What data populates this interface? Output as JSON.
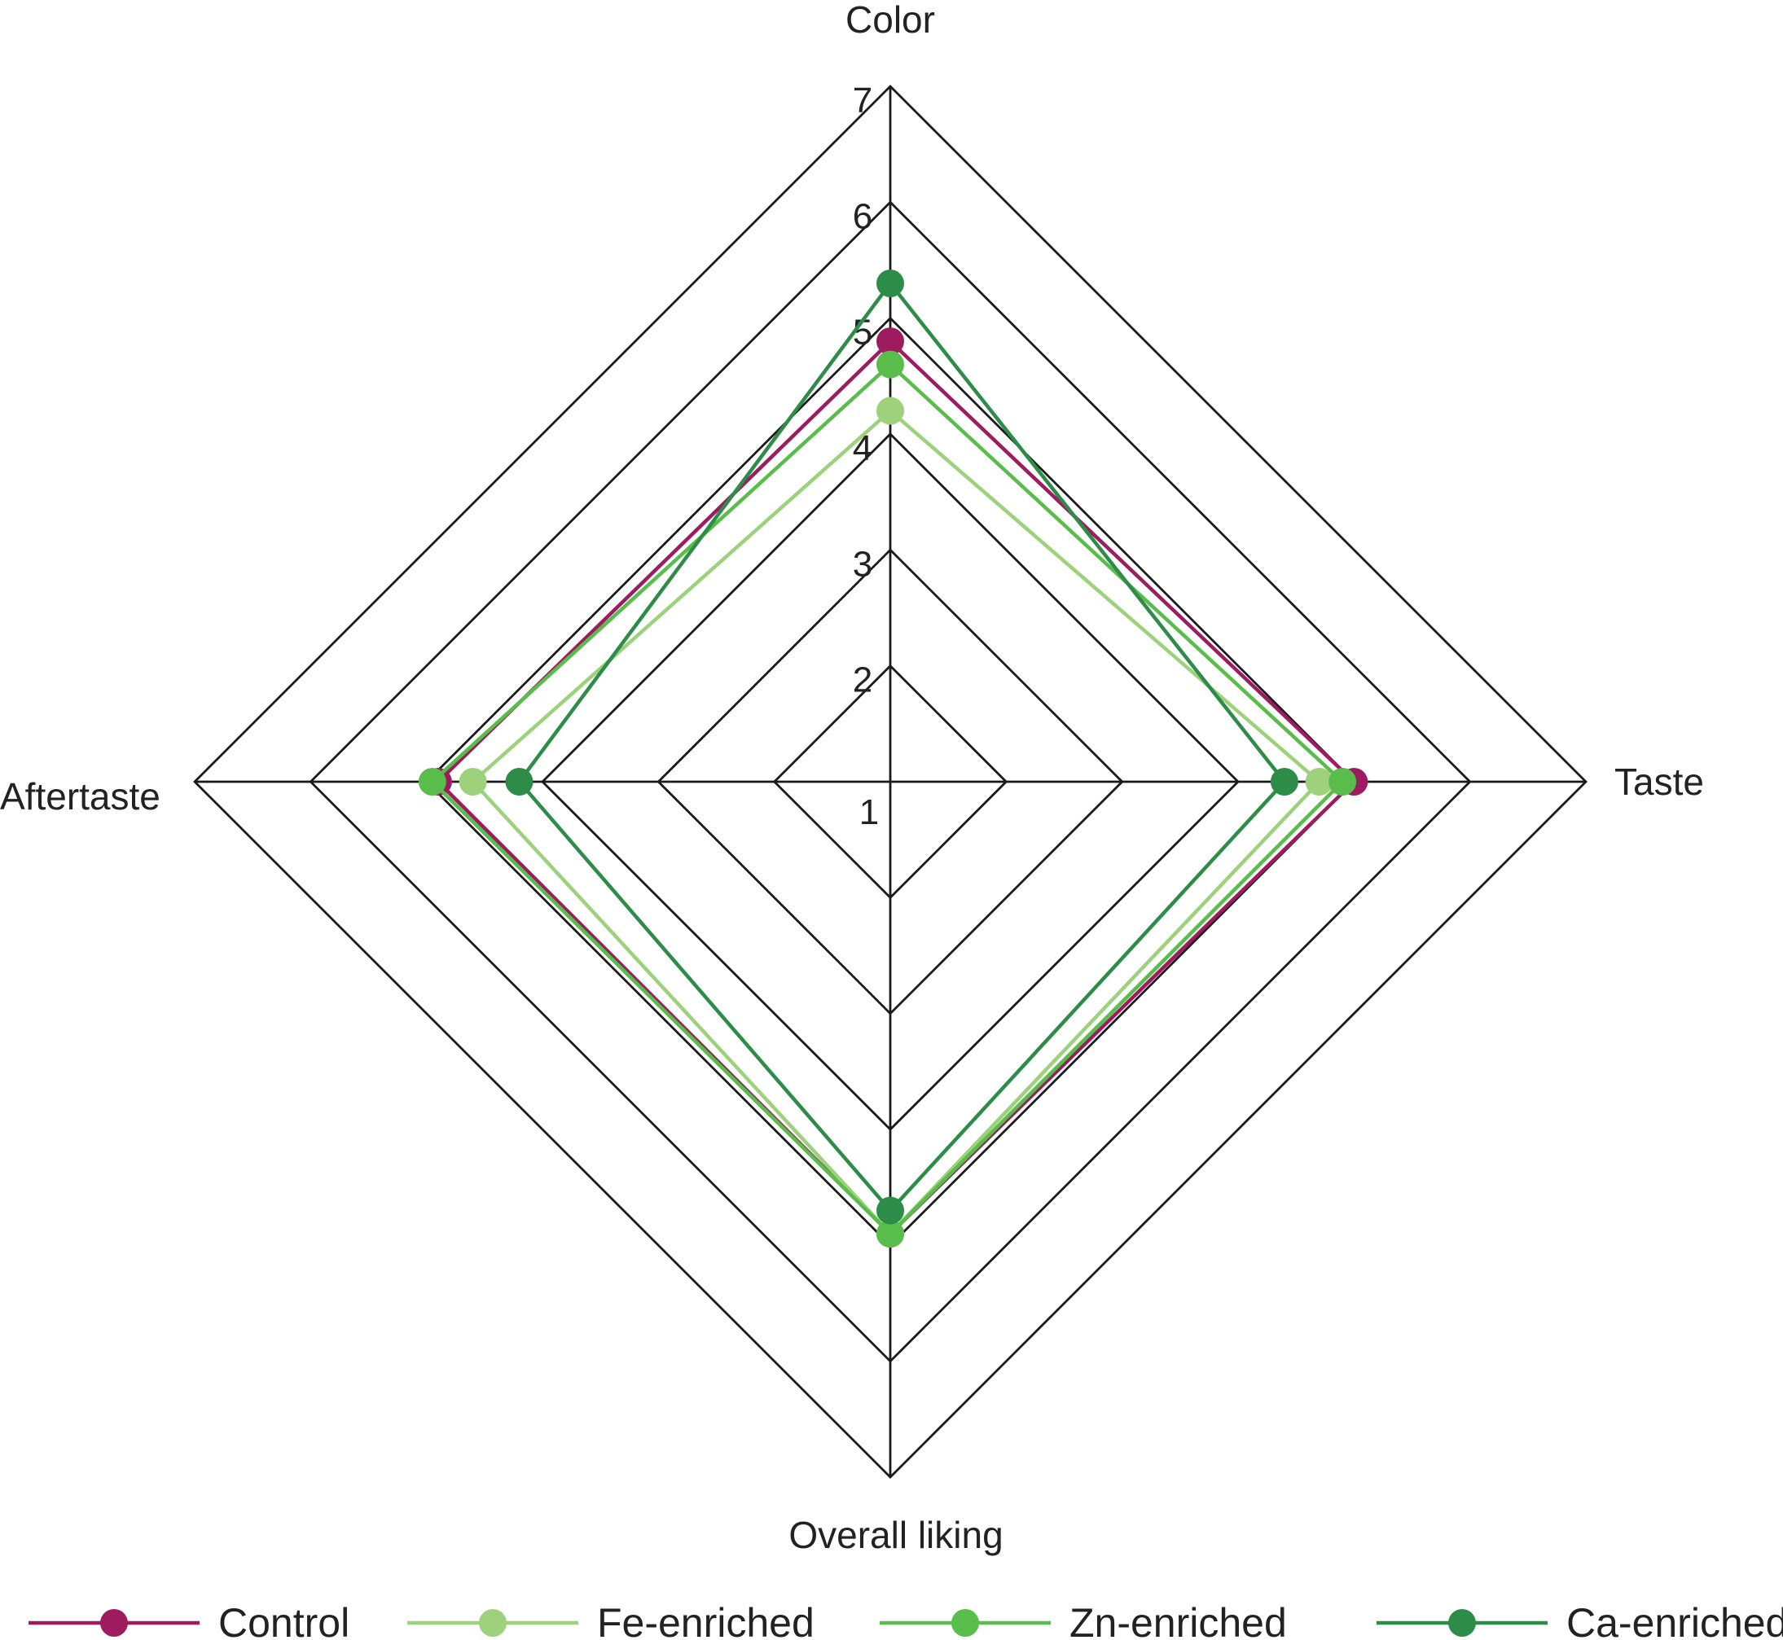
{
  "chart_data": {
    "type": "radar",
    "axes": [
      "Color",
      "Taste",
      "Overall liking",
      "Aftertaste"
    ],
    "rmin": 1,
    "rmax": 7,
    "ticks": [
      "1",
      "2",
      "3",
      "4",
      "5",
      "6",
      "7"
    ],
    "legend_position": "bottom",
    "series": [
      {
        "name": "Control",
        "color": "#9c1c5f",
        "values": [
          4.8,
          5.0,
          4.9,
          4.9
        ]
      },
      {
        "name": "Fe-enriched",
        "color": "#9dd17c",
        "values": [
          4.2,
          4.7,
          4.9,
          4.6
        ]
      },
      {
        "name": "Zn-enriched",
        "color": "#58bd4a",
        "values": [
          4.6,
          4.9,
          4.9,
          4.95
        ]
      },
      {
        "name": "Ca-enriched",
        "color": "#2d8c47",
        "values": [
          5.3,
          4.4,
          4.7,
          4.2
        ]
      }
    ]
  }
}
